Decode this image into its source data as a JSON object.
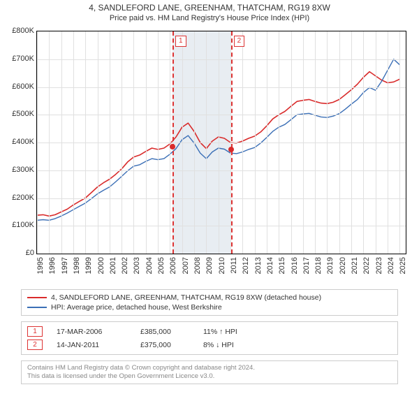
{
  "title": "4, SANDLEFORD LANE, GREENHAM, THATCHAM, RG19 8XW",
  "subtitle": "Price paid vs. HM Land Registry's House Price Index (HPI)",
  "chart": {
    "type": "line",
    "x_start": 1995,
    "x_end": 2025.5,
    "y_start": 0,
    "y_end": 800000,
    "ytick_step": 100000,
    "yticks": [
      "£0",
      "£100K",
      "£200K",
      "£300K",
      "£400K",
      "£500K",
      "£600K",
      "£700K",
      "£800K"
    ],
    "xticks": [
      1995,
      1996,
      1997,
      1998,
      1999,
      2000,
      2001,
      2002,
      2003,
      2004,
      2005,
      2006,
      2007,
      2008,
      2009,
      2010,
      2011,
      2012,
      2013,
      2014,
      2015,
      2016,
      2017,
      2018,
      2019,
      2020,
      2021,
      2022,
      2023,
      2024,
      2025
    ],
    "gridline_color": "#e0e0e0",
    "background_color": "#ffffff",
    "shade_color": "#e8edf2",
    "axis_color": "#000000",
    "series": [
      {
        "name": "property",
        "color": "#d92b2b",
        "width": 1.6,
        "points": [
          [
            1995,
            138
          ],
          [
            1995.5,
            140
          ],
          [
            1996,
            135
          ],
          [
            1996.5,
            140
          ],
          [
            1997,
            150
          ],
          [
            1997.5,
            160
          ],
          [
            1998,
            175
          ],
          [
            1998.5,
            188
          ],
          [
            1999,
            200
          ],
          [
            1999.5,
            220
          ],
          [
            2000,
            240
          ],
          [
            2000.5,
            255
          ],
          [
            2001,
            268
          ],
          [
            2001.5,
            285
          ],
          [
            2002,
            305
          ],
          [
            2002.5,
            330
          ],
          [
            2003,
            348
          ],
          [
            2003.5,
            355
          ],
          [
            2004,
            368
          ],
          [
            2004.5,
            380
          ],
          [
            2005,
            375
          ],
          [
            2005.5,
            380
          ],
          [
            2006,
            395
          ],
          [
            2006.5,
            420
          ],
          [
            2007,
            455
          ],
          [
            2007.5,
            470
          ],
          [
            2008,
            440
          ],
          [
            2008.5,
            400
          ],
          [
            2009,
            378
          ],
          [
            2009.5,
            405
          ],
          [
            2010,
            420
          ],
          [
            2010.5,
            415
          ],
          [
            2011,
            400
          ],
          [
            2011.5,
            398
          ],
          [
            2012,
            405
          ],
          [
            2012.5,
            415
          ],
          [
            2013,
            423
          ],
          [
            2013.5,
            438
          ],
          [
            2014,
            460
          ],
          [
            2014.5,
            485
          ],
          [
            2015,
            500
          ],
          [
            2015.5,
            512
          ],
          [
            2016,
            530
          ],
          [
            2016.5,
            548
          ],
          [
            2017,
            552
          ],
          [
            2017.5,
            555
          ],
          [
            2018,
            548
          ],
          [
            2018.5,
            542
          ],
          [
            2019,
            540
          ],
          [
            2019.5,
            545
          ],
          [
            2020,
            555
          ],
          [
            2020.5,
            572
          ],
          [
            2021,
            590
          ],
          [
            2021.5,
            610
          ],
          [
            2022,
            635
          ],
          [
            2022.5,
            655
          ],
          [
            2023,
            640
          ],
          [
            2023.5,
            625
          ],
          [
            2024,
            615
          ],
          [
            2024.5,
            618
          ],
          [
            2025,
            628
          ]
        ]
      },
      {
        "name": "hpi",
        "color": "#3b6fb6",
        "width": 1.4,
        "points": [
          [
            1995,
            120
          ],
          [
            1995.5,
            122
          ],
          [
            1996,
            120
          ],
          [
            1996.5,
            126
          ],
          [
            1997,
            135
          ],
          [
            1997.5,
            146
          ],
          [
            1998,
            158
          ],
          [
            1998.5,
            170
          ],
          [
            1999,
            182
          ],
          [
            1999.5,
            198
          ],
          [
            2000,
            215
          ],
          [
            2000.5,
            228
          ],
          [
            2001,
            240
          ],
          [
            2001.5,
            258
          ],
          [
            2002,
            278
          ],
          [
            2002.5,
            298
          ],
          [
            2003,
            315
          ],
          [
            2003.5,
            320
          ],
          [
            2004,
            332
          ],
          [
            2004.5,
            342
          ],
          [
            2005,
            338
          ],
          [
            2005.5,
            342
          ],
          [
            2006,
            358
          ],
          [
            2006.5,
            378
          ],
          [
            2007,
            410
          ],
          [
            2007.5,
            425
          ],
          [
            2008,
            398
          ],
          [
            2008.5,
            362
          ],
          [
            2009,
            342
          ],
          [
            2009.5,
            366
          ],
          [
            2010,
            380
          ],
          [
            2010.5,
            376
          ],
          [
            2011,
            362
          ],
          [
            2011.5,
            360
          ],
          [
            2012,
            366
          ],
          [
            2012.5,
            375
          ],
          [
            2013,
            382
          ],
          [
            2013.5,
            398
          ],
          [
            2014,
            418
          ],
          [
            2014.5,
            440
          ],
          [
            2015,
            455
          ],
          [
            2015.5,
            465
          ],
          [
            2016,
            482
          ],
          [
            2016.5,
            500
          ],
          [
            2017,
            503
          ],
          [
            2017.5,
            505
          ],
          [
            2018,
            498
          ],
          [
            2018.5,
            492
          ],
          [
            2019,
            490
          ],
          [
            2019.5,
            495
          ],
          [
            2020,
            504
          ],
          [
            2020.5,
            520
          ],
          [
            2021,
            538
          ],
          [
            2021.5,
            555
          ],
          [
            2022,
            580
          ],
          [
            2022.5,
            598
          ],
          [
            2023,
            588
          ],
          [
            2023.5,
            620
          ],
          [
            2024,
            660
          ],
          [
            2024.5,
            700
          ],
          [
            2025,
            680
          ]
        ]
      }
    ],
    "shade_regions": [
      [
        2006.21,
        2011.04
      ]
    ],
    "event_lines": [
      2006.21,
      2011.04
    ],
    "event_markers": [
      {
        "label": "1",
        "x": 2006.21,
        "y": 385
      },
      {
        "label": "2",
        "x": 2011.04,
        "y": 375
      }
    ],
    "dot_color": "#d92b2b"
  },
  "legend": {
    "items": [
      {
        "color": "#d92b2b",
        "label": "4, SANDLEFORD LANE, GREENHAM, THATCHAM, RG19 8XW (detached house)"
      },
      {
        "color": "#3b6fb6",
        "label": "HPI: Average price, detached house, West Berkshire"
      }
    ]
  },
  "sales": [
    {
      "marker": "1",
      "date": "17-MAR-2006",
      "price": "£385,000",
      "pct": "11% ↑ HPI"
    },
    {
      "marker": "2",
      "date": "14-JAN-2011",
      "price": "£375,000",
      "pct": "8% ↓ HPI"
    }
  ],
  "credit": {
    "line1": "Contains HM Land Registry data © Crown copyright and database right 2024.",
    "line2": "This data is licensed under the Open Government Licence v3.0."
  }
}
